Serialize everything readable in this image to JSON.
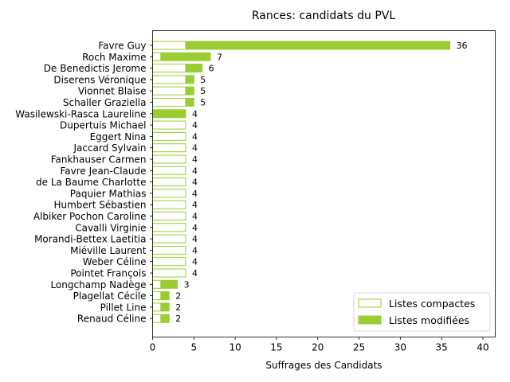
{
  "chart_data": {
    "type": "bar",
    "orientation": "horizontal",
    "stacked": true,
    "title": "Rances: candidats du PVL",
    "xlabel": "Suffrages des Candidats",
    "ylabel": "",
    "xlim": [
      0,
      41.5
    ],
    "xticks": [
      0,
      5,
      10,
      15,
      20,
      25,
      30,
      35,
      40
    ],
    "grid": false,
    "legend_position": "bottom-right",
    "colors": {
      "accent": "#9acd32",
      "edge": "#9acd32",
      "fill_compact": "#ffffff"
    },
    "categories": [
      "Favre Guy",
      "Roch Maxime",
      "De Benedictis Jerome",
      "Diserens Véronique",
      "Vionnet Blaise",
      "Schaller Graziella",
      "Wasilewski-Rasca Laureline",
      "Dupertuis Michael",
      "Eggert Nina",
      "Jaccard Sylvain",
      "Fankhauser Carmen",
      "Favre Jean-Claude",
      "de La Baume Charlotte",
      "Paquier Mathias",
      "Humbert Sébastien",
      "Albiker Pochon Caroline",
      "Cavalli Virginie",
      "Morandi-Bettex Laetitia",
      "Miéville Laurent",
      "Weber Céline",
      "Pointet François",
      "Longchamp Nadège",
      "Plagellat Cécile",
      "Pillet Line",
      "Renaud Céline"
    ],
    "series": [
      {
        "name": "Listes compactes",
        "values": [
          4,
          1,
          4,
          4,
          4,
          4,
          0,
          4,
          4,
          4,
          4,
          4,
          4,
          4,
          4,
          4,
          4,
          4,
          4,
          4,
          4,
          1,
          1,
          1,
          1
        ]
      },
      {
        "name": "Listes modifiées",
        "values": [
          32,
          6,
          2,
          1,
          1,
          1,
          4,
          0,
          0,
          0,
          0,
          0,
          0,
          0,
          0,
          0,
          0,
          0,
          0,
          0,
          0,
          2,
          1,
          1,
          1
        ]
      }
    ],
    "totals": [
      36,
      7,
      6,
      5,
      5,
      5,
      4,
      4,
      4,
      4,
      4,
      4,
      4,
      4,
      4,
      4,
      4,
      4,
      4,
      4,
      4,
      3,
      2,
      2,
      2
    ]
  }
}
